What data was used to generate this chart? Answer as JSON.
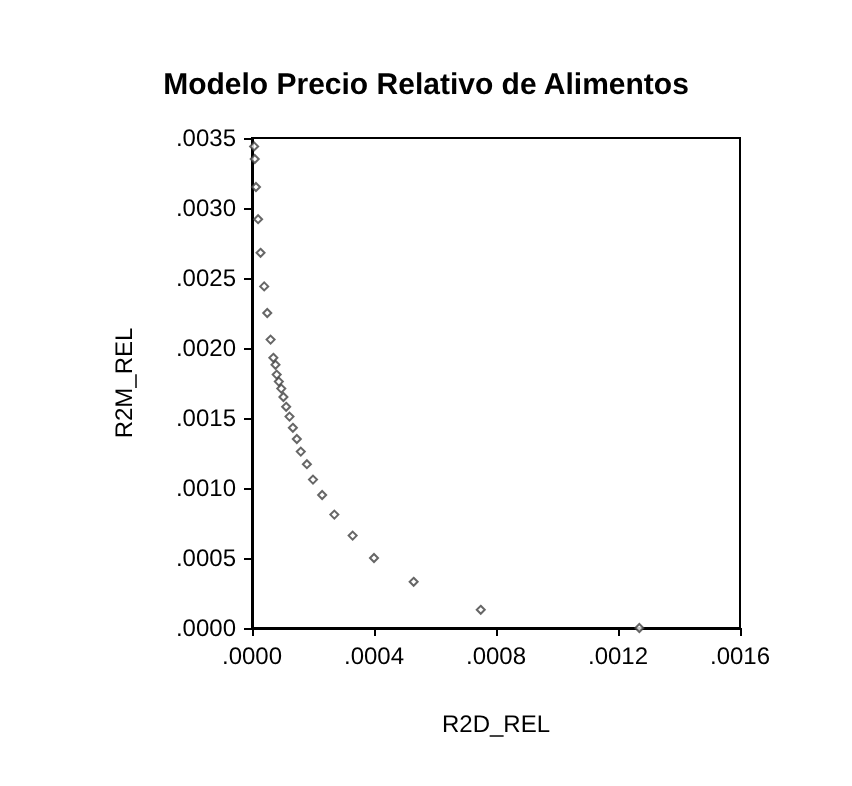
{
  "chart_data": {
    "type": "scatter",
    "title": "Modelo Precio Relativo de Alimentos",
    "xlabel": "R2D_REL",
    "ylabel": "R2M_REL",
    "x": [
      0.00127,
      0.00075,
      0.00053,
      0.0004,
      0.00033,
      0.00027,
      0.00023,
      0.0002,
      0.00018,
      0.00016,
      0.000147,
      0.000134,
      0.000123,
      0.000112,
      0.000103,
      9.6e-05,
      8.8e-05,
      8.1e-05,
      7.7e-05,
      7e-05,
      6.1e-05,
      5e-05,
      4e-05,
      2.8e-05,
      2e-05,
      1.3e-05,
      9e-06,
      7e-06
    ],
    "values": [
      0,
      0.00013,
      0.00033,
      0.0005,
      0.00066,
      0.00081,
      0.00095,
      0.00106,
      0.00117,
      0.00126,
      0.00135,
      0.00143,
      0.00151,
      0.00158,
      0.00165,
      0.00171,
      0.00176,
      0.00181,
      0.00188,
      0.00193,
      0.00206,
      0.00225,
      0.00244,
      0.00268,
      0.00292,
      0.00315,
      0.00335,
      0.00344
    ],
    "color": "#404040",
    "marker": "diamond",
    "grid": false,
    "xlim": [
      0,
      0.0016
    ],
    "xticks": [
      {
        "value": 0,
        "label": ".0000"
      },
      {
        "value": 0.0004,
        "label": ".0004"
      },
      {
        "value": 0.0008,
        "label": ".0008"
      },
      {
        "value": 0.0012,
        "label": ".0012"
      },
      {
        "value": 0.0016,
        "label": ".0016"
      }
    ],
    "ylim": [
      0,
      0.0035
    ],
    "yticks": [
      {
        "value": 0,
        "label": ".0000"
      },
      {
        "value": 0.0005,
        "label": ".0005"
      },
      {
        "value": 0.001,
        "label": ".0010"
      },
      {
        "value": 0.0015,
        "label": ".0015"
      },
      {
        "value": 0.002,
        "label": ".0020"
      },
      {
        "value": 0.0025,
        "label": ".0025"
      },
      {
        "value": 0.003,
        "label": ".0030"
      },
      {
        "value": 0.0035,
        "label": ".0035"
      }
    ]
  }
}
